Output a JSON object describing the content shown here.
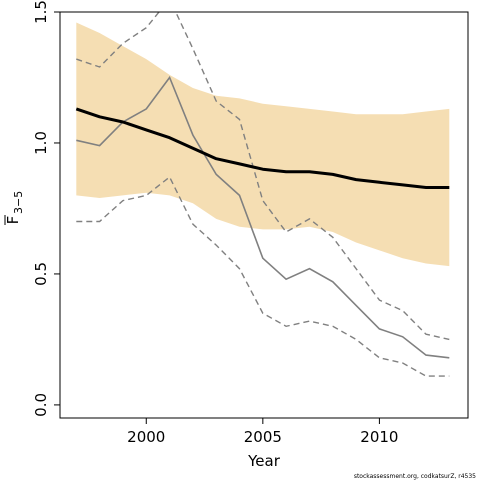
{
  "chart_data": {
    "type": "line",
    "xlabel": "Year",
    "ylabel_main": "F",
    "ylabel_sub": "3−5",
    "xlim": [
      1996.3,
      2013.8
    ],
    "ylim": [
      -0.05,
      1.5
    ],
    "x_ticks": [
      2000,
      2005,
      2010
    ],
    "x_tick_labels": [
      "2000",
      "2005",
      "2010"
    ],
    "y_ticks": [
      0.0,
      0.5,
      1.0,
      1.5
    ],
    "y_tick_labels": [
      "0.0",
      "0.5",
      "1.0",
      "1.5"
    ],
    "grid": false,
    "legend": "none",
    "colors": {
      "band": "#f5deb3",
      "estimate": "#000000",
      "observed": "#808080",
      "observed_ci": "#808080",
      "axis": "#000000"
    },
    "x": [
      1997,
      1998,
      1999,
      2000,
      2001,
      2002,
      2003,
      2004,
      2005,
      2006,
      2007,
      2008,
      2009,
      2010,
      2011,
      2012,
      2013
    ],
    "series": [
      {
        "role": "band",
        "lower": [
          0.8,
          0.79,
          0.8,
          0.81,
          0.8,
          0.77,
          0.71,
          0.68,
          0.67,
          0.67,
          0.68,
          0.66,
          0.62,
          0.59,
          0.56,
          0.54,
          0.53
        ],
        "upper": [
          1.46,
          1.42,
          1.37,
          1.32,
          1.26,
          1.21,
          1.18,
          1.17,
          1.15,
          1.14,
          1.13,
          1.12,
          1.11,
          1.11,
          1.11,
          1.12,
          1.13
        ]
      },
      {
        "role": "estimate",
        "values": [
          1.13,
          1.1,
          1.08,
          1.05,
          1.02,
          0.98,
          0.94,
          0.92,
          0.9,
          0.89,
          0.89,
          0.88,
          0.86,
          0.85,
          0.84,
          0.83,
          0.83
        ]
      },
      {
        "role": "observed",
        "values": [
          1.01,
          0.99,
          1.08,
          1.13,
          1.25,
          1.03,
          0.88,
          0.8,
          0.56,
          0.48,
          0.52,
          0.47,
          0.38,
          0.29,
          0.26,
          0.19,
          0.18
        ]
      },
      {
        "role": "observed_upper",
        "values": [
          1.32,
          1.29,
          1.38,
          1.44,
          1.55,
          1.36,
          1.16,
          1.09,
          0.78,
          0.66,
          0.71,
          0.64,
          0.52,
          0.4,
          0.36,
          0.27,
          0.25
        ]
      },
      {
        "role": "observed_lower",
        "values": [
          0.7,
          0.7,
          0.78,
          0.8,
          0.87,
          0.69,
          0.61,
          0.52,
          0.35,
          0.3,
          0.32,
          0.3,
          0.25,
          0.18,
          0.16,
          0.11,
          0.11
        ]
      }
    ]
  },
  "credit": "stockassessment.org, codkatsurZ, r4535"
}
